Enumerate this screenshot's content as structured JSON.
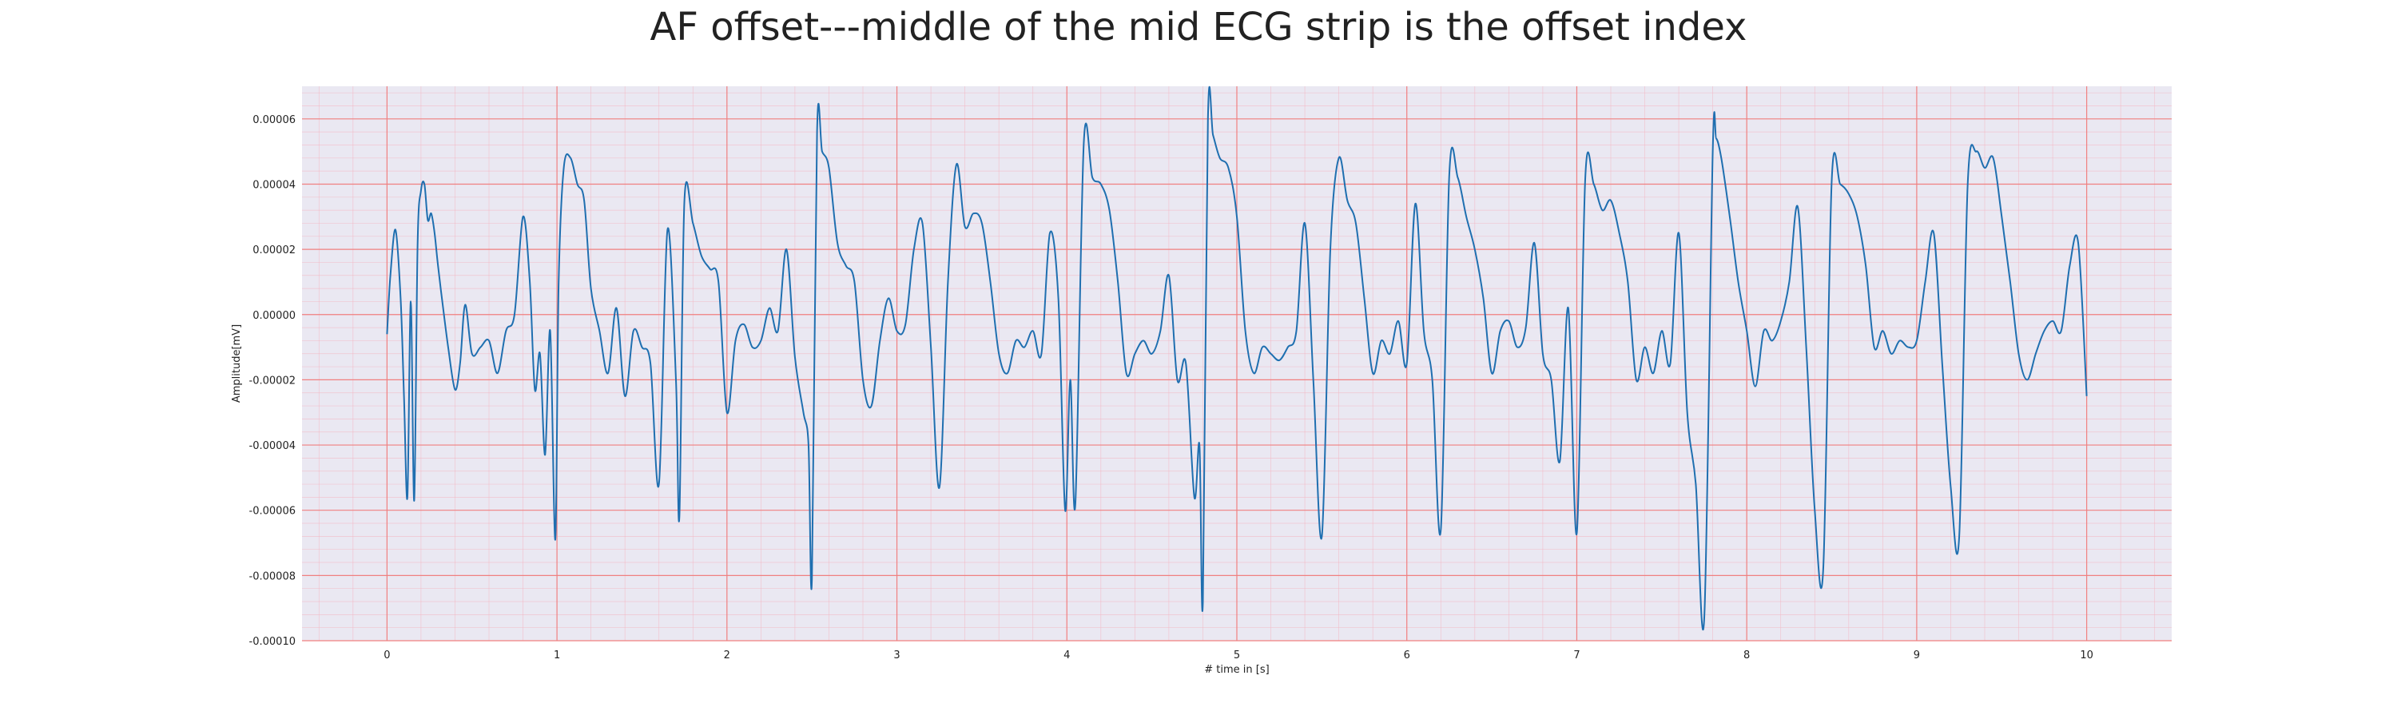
{
  "chart_data": {
    "type": "line",
    "title": "AF offset---middle of the mid ECG strip is the offset index",
    "xlabel": "# time in [s]",
    "ylabel": "Amplitude[mV]",
    "xlim": [
      -0.5,
      10.5
    ],
    "ylim": [
      -0.0001,
      7e-05
    ],
    "x_ticks": [
      0,
      1,
      2,
      3,
      4,
      5,
      6,
      7,
      8,
      9,
      10
    ],
    "x_tick_labels": [
      "0",
      "1",
      "2",
      "3",
      "4",
      "5",
      "6",
      "7",
      "8",
      "9",
      "10"
    ],
    "y_ticks": [
      -0.0001,
      -8e-05,
      -6e-05,
      -4e-05,
      -2e-05,
      0.0,
      2e-05,
      4e-05,
      6e-05
    ],
    "y_tick_labels": [
      "-0.00010",
      "-0.00008",
      "-0.00006",
      "-0.00004",
      "-0.00002",
      "0.00000",
      "0.00002",
      "0.00004",
      "0.00006"
    ],
    "grid": {
      "major": true,
      "minor": true,
      "major_color": "#f08080",
      "minor_color": "#f4b6c2"
    },
    "background_color": "#eae8f2",
    "series": [
      {
        "color": "#1f6fb0",
        "x": [
          0,
          0.02,
          0.05,
          0.08,
          0.1,
          0.12,
          0.14,
          0.16,
          0.18,
          0.2,
          0.22,
          0.24,
          0.26,
          0.28,
          0.3,
          0.33,
          0.36,
          0.4,
          0.43,
          0.46,
          0.5,
          0.55,
          0.6,
          0.65,
          0.7,
          0.75,
          0.8,
          0.84,
          0.87,
          0.9,
          0.93,
          0.96,
          0.99,
          1.01,
          1.04,
          1.08,
          1.12,
          1.16,
          1.2,
          1.25,
          1.3,
          1.35,
          1.4,
          1.45,
          1.5,
          1.55,
          1.6,
          1.65,
          1.7,
          1.72,
          1.75,
          1.8,
          1.85,
          1.9,
          1.95,
          2.0,
          2.05,
          2.1,
          2.15,
          2.2,
          2.25,
          2.3,
          2.35,
          2.4,
          2.45,
          2.48,
          2.5,
          2.53,
          2.56,
          2.6,
          2.65,
          2.7,
          2.75,
          2.8,
          2.85,
          2.9,
          2.95,
          3.0,
          3.05,
          3.1,
          3.15,
          3.2,
          3.25,
          3.3,
          3.35,
          3.4,
          3.45,
          3.5,
          3.55,
          3.6,
          3.65,
          3.7,
          3.75,
          3.8,
          3.85,
          3.9,
          3.95,
          3.99,
          4.02,
          4.05,
          4.1,
          4.15,
          4.2,
          4.25,
          4.3,
          4.35,
          4.4,
          4.45,
          4.5,
          4.55,
          4.6,
          4.65,
          4.7,
          4.75,
          4.78,
          4.8,
          4.83,
          4.86,
          4.9,
          4.95,
          5.0,
          5.05,
          5.1,
          5.15,
          5.2,
          5.25,
          5.3,
          5.35,
          5.4,
          5.45,
          5.5,
          5.55,
          5.6,
          5.65,
          5.7,
          5.75,
          5.8,
          5.85,
          5.9,
          5.95,
          6.0,
          6.05,
          6.1,
          6.15,
          6.2,
          6.25,
          6.3,
          6.35,
          6.4,
          6.45,
          6.5,
          6.55,
          6.6,
          6.65,
          6.7,
          6.75,
          6.8,
          6.85,
          6.9,
          6.95,
          7.0,
          7.05,
          7.1,
          7.15,
          7.2,
          7.25,
          7.3,
          7.35,
          7.4,
          7.45,
          7.5,
          7.55,
          7.6,
          7.65,
          7.7,
          7.75,
          7.8,
          7.82,
          7.85,
          7.9,
          7.95,
          8.0,
          8.05,
          8.1,
          8.15,
          8.2,
          8.25,
          8.3,
          8.35,
          8.4,
          8.45,
          8.5,
          8.55,
          8.6,
          8.65,
          8.7,
          8.75,
          8.8,
          8.85,
          8.9,
          8.95,
          9.0,
          9.05,
          9.1,
          9.15,
          9.2,
          9.25,
          9.3,
          9.35,
          9.4,
          9.45,
          9.5,
          9.55,
          9.6,
          9.65,
          9.7,
          9.75,
          9.8,
          9.85,
          9.9,
          9.95,
          10.0
        ],
        "y": [
          -6e-06,
          1.2e-05,
          2.6e-05,
          5e-06,
          -2.5e-05,
          -5.6e-05,
          4e-06,
          -5.7e-05,
          2.2e-05,
          3.8e-05,
          4e-05,
          2.9e-05,
          3.1e-05,
          2.5e-05,
          1.5e-05,
          2e-06,
          -1e-05,
          -2.3e-05,
          -1.5e-05,
          3e-06,
          -1.2e-05,
          -1e-05,
          -8e-06,
          -1.8e-05,
          -5e-06,
          0.0,
          3e-05,
          1e-05,
          -2.3e-05,
          -1.2e-05,
          -4.3e-05,
          -5e-06,
          -6.9e-05,
          1e-05,
          4.5e-05,
          4.8e-05,
          4e-05,
          3.5e-05,
          8e-06,
          -5e-06,
          -1.8e-05,
          2e-06,
          -2.5e-05,
          -5e-06,
          -1e-05,
          -1.5e-05,
          -5.2e-05,
          2.6e-05,
          -2e-05,
          -6.2e-05,
          3.5e-05,
          2.8e-05,
          1.8e-05,
          1.4e-05,
          1e-05,
          -3e-05,
          -8e-06,
          -3e-06,
          -1e-05,
          -8e-06,
          2e-06,
          -5e-06,
          2e-05,
          -1.3e-05,
          -3e-05,
          -4e-05,
          -8.1e-05,
          5.6e-05,
          5e-05,
          4.5e-05,
          2.2e-05,
          1.5e-05,
          1e-05,
          -2e-05,
          -2.8e-05,
          -8e-06,
          5e-06,
          -5e-06,
          -3e-06,
          2e-05,
          2.8e-05,
          -1e-05,
          -5.3e-05,
          1e-05,
          4.6e-05,
          2.7e-05,
          3.1e-05,
          2.8e-05,
          1e-05,
          -1.2e-05,
          -1.8e-05,
          -8e-06,
          -1e-05,
          -5e-06,
          -1.2e-05,
          2.5e-05,
          5e-06,
          -6e-05,
          -2e-05,
          -5.8e-05,
          5.3e-05,
          4.2e-05,
          4e-05,
          3.2e-05,
          1e-05,
          -1.8e-05,
          -1.2e-05,
          -8e-06,
          -1.2e-05,
          -5e-06,
          1.2e-05,
          -2e-05,
          -1.5e-05,
          -5.6e-05,
          -4e-05,
          -8.8e-05,
          6e-05,
          5.5e-05,
          4.8e-05,
          4.5e-05,
          3e-05,
          -5e-06,
          -1.8e-05,
          -1e-05,
          -1.2e-05,
          -1.4e-05,
          -1e-05,
          -5e-06,
          2.8e-05,
          -2e-05,
          -6.8e-05,
          2e-05,
          4.8e-05,
          3.5e-05,
          2.8e-05,
          5e-06,
          -1.8e-05,
          -8e-06,
          -1.2e-05,
          -2e-06,
          -1.5e-05,
          3.4e-05,
          -5e-06,
          -2e-05,
          -6.6e-05,
          4.3e-05,
          4.2e-05,
          3e-05,
          2e-05,
          5e-06,
          -1.8e-05,
          -5e-06,
          -2e-06,
          -1e-05,
          -4e-06,
          2.2e-05,
          -1.2e-05,
          -2e-05,
          -4.5e-05,
          2e-06,
          -6.7e-05,
          4.2e-05,
          4e-05,
          3.2e-05,
          3.5e-05,
          2.5e-05,
          1e-05,
          -2e-05,
          -1e-05,
          -1.8e-05,
          -5e-06,
          -1.5e-05,
          2.5e-05,
          -3e-05,
          -5.2e-05,
          -9.3e-05,
          5e-05,
          5.4e-05,
          4.8e-05,
          3e-05,
          1e-05,
          -5e-06,
          -2.2e-05,
          -5e-06,
          -8e-06,
          -2e-06,
          1e-05,
          3.3e-05,
          -1e-05,
          -6e-05,
          -7.8e-05,
          4.1e-05,
          4e-05,
          3.7e-05,
          3e-05,
          1.5e-05,
          -1e-05,
          -5e-06,
          -1.2e-05,
          -8e-06,
          -1e-05,
          -8e-06,
          1e-05,
          2.5e-05,
          -1.5e-05,
          -5.3e-05,
          -6.8e-05,
          4e-05,
          5e-05,
          4.5e-05,
          4.8e-05,
          3e-05,
          1e-05,
          -1.2e-05,
          -2e-05,
          -1.2e-05,
          -5e-06,
          -2e-06,
          -5e-06,
          1.5e-05,
          2.2e-05,
          -2.5e-05
        ]
      }
    ]
  }
}
